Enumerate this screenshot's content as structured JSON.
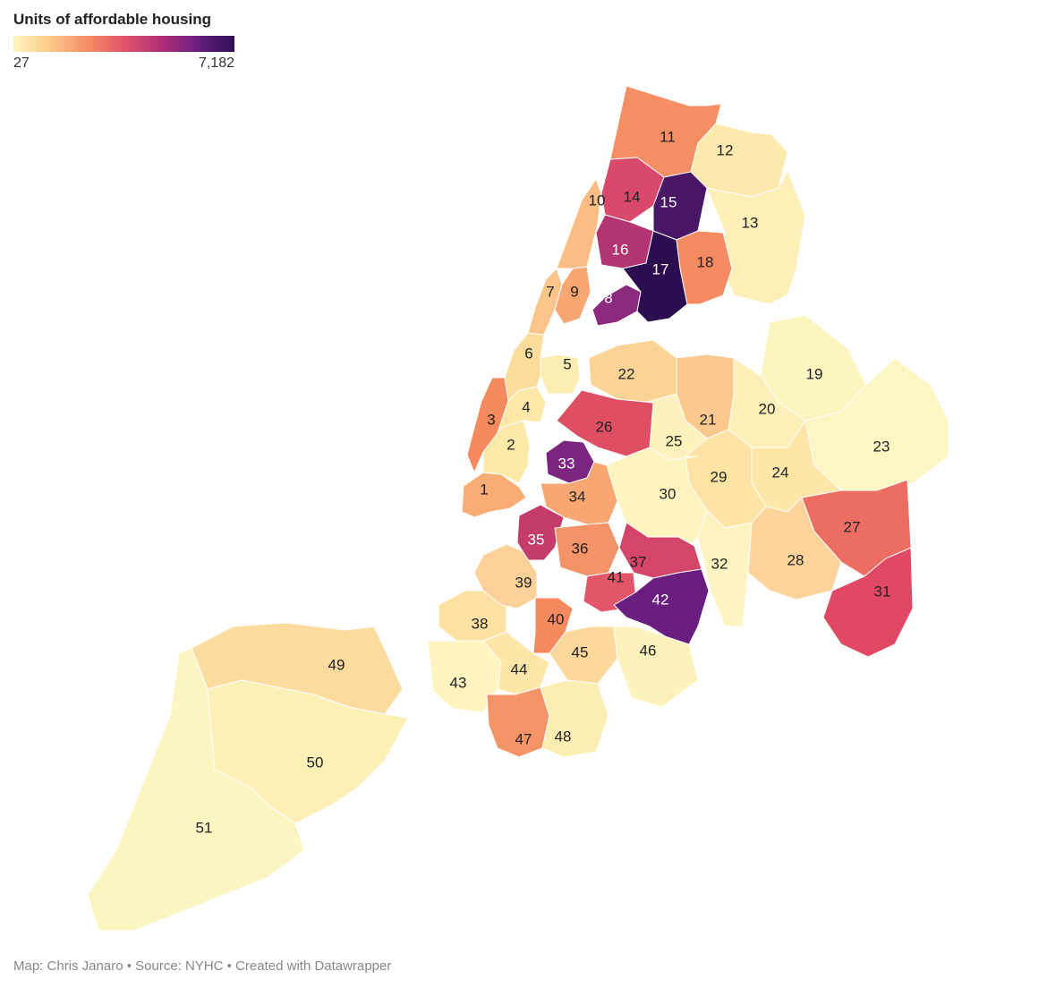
{
  "legend": {
    "title": "Units of affordable housing",
    "min_label": "27",
    "max_label": "7,182",
    "gradient": [
      "#fdf5bd",
      "#fcc98a",
      "#f58d66",
      "#e0546a",
      "#b02f76",
      "#6a1f81",
      "#2d0f55"
    ]
  },
  "footer": "Map: Chris Janaro • Source: NYHC • Created with Datawrapper",
  "districts": [
    {
      "label": "1",
      "color": "#f9ac74"
    },
    {
      "label": "2",
      "color": "#fce9a8"
    },
    {
      "label": "3",
      "color": "#f58a5f"
    },
    {
      "label": "4",
      "color": "#fde8a8"
    },
    {
      "label": "5",
      "color": "#fdedb3"
    },
    {
      "label": "6",
      "color": "#fcdc9a"
    },
    {
      "label": "7",
      "color": "#fbc58a"
    },
    {
      "label": "8",
      "color": "#8c2a7d"
    },
    {
      "label": "9",
      "color": "#f9a672"
    },
    {
      "label": "10",
      "color": "#fbbd83"
    },
    {
      "label": "11",
      "color": "#f58e63"
    },
    {
      "label": "12",
      "color": "#fde9ad"
    },
    {
      "label": "13",
      "color": "#fdefb8"
    },
    {
      "label": "14",
      "color": "#d8496c"
    },
    {
      "label": "15",
      "color": "#4a1766"
    },
    {
      "label": "16",
      "color": "#b23572"
    },
    {
      "label": "17",
      "color": "#2b0d50"
    },
    {
      "label": "18",
      "color": "#f58a63"
    },
    {
      "label": "19",
      "color": "#fdf5bf"
    },
    {
      "label": "20",
      "color": "#fdefb8"
    },
    {
      "label": "21",
      "color": "#fbc88d"
    },
    {
      "label": "22",
      "color": "#fbd394"
    },
    {
      "label": "23",
      "color": "#fdf6c2"
    },
    {
      "label": "24",
      "color": "#fde6a8"
    },
    {
      "label": "25",
      "color": "#fdf2bb"
    },
    {
      "label": "26",
      "color": "#de4f63"
    },
    {
      "label": "27",
      "color": "#ee6d62"
    },
    {
      "label": "28",
      "color": "#fcd49b"
    },
    {
      "label": "29",
      "color": "#fde4a4"
    },
    {
      "label": "30",
      "color": "#fdf4bf"
    },
    {
      "label": "31",
      "color": "#e04863"
    },
    {
      "label": "32",
      "color": "#fdf4c1"
    },
    {
      "label": "33",
      "color": "#7c2580"
    },
    {
      "label": "34",
      "color": "#f8a772"
    },
    {
      "label": "35",
      "color": "#c43b6c"
    },
    {
      "label": "36",
      "color": "#f49268"
    },
    {
      "label": "37",
      "color": "#d4456a"
    },
    {
      "label": "38",
      "color": "#fde0a2"
    },
    {
      "label": "39",
      "color": "#fcd099"
    },
    {
      "label": "40",
      "color": "#f58a5f"
    },
    {
      "label": "41",
      "color": "#e35568"
    },
    {
      "label": "42",
      "color": "#6a1f80"
    },
    {
      "label": "43",
      "color": "#fdf4bf"
    },
    {
      "label": "44",
      "color": "#fde6a8"
    },
    {
      "label": "45",
      "color": "#fcd89c"
    },
    {
      "label": "46",
      "color": "#fdf2bb"
    },
    {
      "label": "47",
      "color": "#f59467"
    },
    {
      "label": "48",
      "color": "#fdedb3"
    },
    {
      "label": "49",
      "color": "#fcdb9f"
    },
    {
      "label": "50",
      "color": "#fdf0b6"
    },
    {
      "label": "51",
      "color": "#fdf5c1"
    }
  ],
  "dark_label_color": "#222222",
  "light_label_color": "#ffffff"
}
